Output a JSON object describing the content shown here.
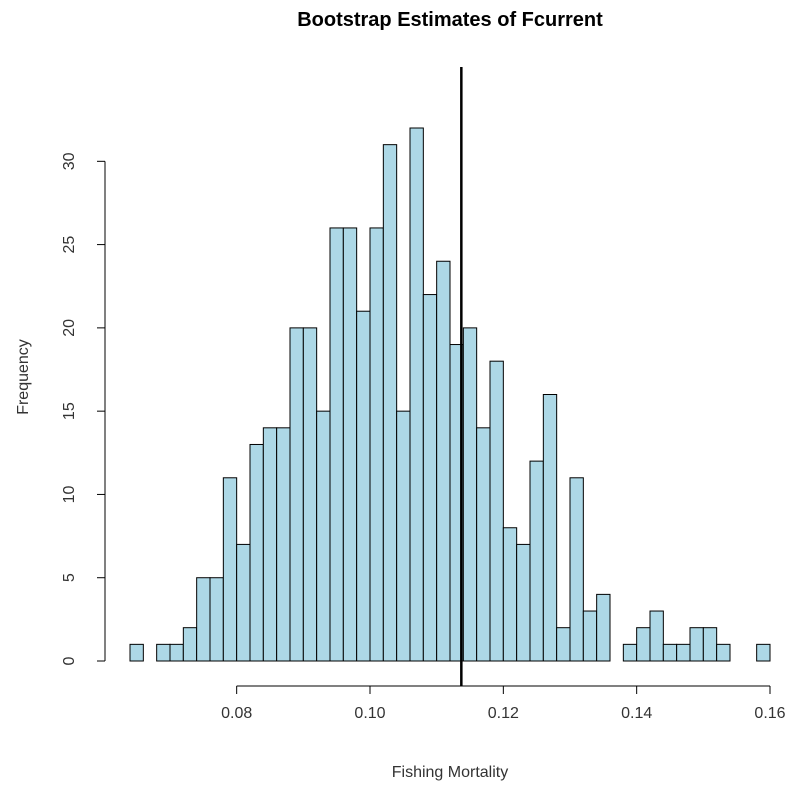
{
  "chart_data": {
    "type": "bar",
    "title": "Bootstrap Estimates of Fcurrent",
    "xlabel": "Fishing Mortality",
    "ylabel": "Frequency",
    "xlim": [
      0.064,
      0.16
    ],
    "ylim": [
      0,
      32
    ],
    "bin_width": 0.002,
    "bins_start": [
      0.064,
      0.066,
      0.068,
      0.07,
      0.072,
      0.074,
      0.076,
      0.078,
      0.08,
      0.082,
      0.084,
      0.086,
      0.088,
      0.09,
      0.092,
      0.094,
      0.096,
      0.098,
      0.1,
      0.102,
      0.104,
      0.106,
      0.108,
      0.11,
      0.112,
      0.114,
      0.116,
      0.118,
      0.12,
      0.122,
      0.124,
      0.126,
      0.128,
      0.13,
      0.132,
      0.134,
      0.136,
      0.138,
      0.14,
      0.142,
      0.144,
      0.146,
      0.148,
      0.15,
      0.152,
      0.154,
      0.156,
      0.158
    ],
    "values": [
      1,
      0,
      1,
      1,
      2,
      5,
      5,
      11,
      7,
      13,
      14,
      14,
      20,
      20,
      15,
      26,
      26,
      21,
      26,
      31,
      15,
      32,
      22,
      24,
      19,
      20,
      14,
      18,
      8,
      7,
      12,
      16,
      2,
      11,
      3,
      4,
      0,
      1,
      2,
      3,
      1,
      1,
      2,
      2,
      1,
      0,
      0,
      1
    ],
    "x_ticks": [
      "0.08",
      "0.10",
      "0.12",
      "0.14",
      "0.16"
    ],
    "x_tick_values": [
      0.08,
      0.1,
      0.12,
      0.14,
      0.16
    ],
    "y_ticks": [
      "0",
      "5",
      "10",
      "15",
      "20",
      "25",
      "30"
    ],
    "y_tick_values": [
      0,
      5,
      10,
      15,
      20,
      25,
      30
    ],
    "reference_line": 0.1137,
    "colors": {
      "bar_fill": "#add8e6",
      "bar_stroke": "#000000",
      "ref_line": "#000000"
    }
  }
}
